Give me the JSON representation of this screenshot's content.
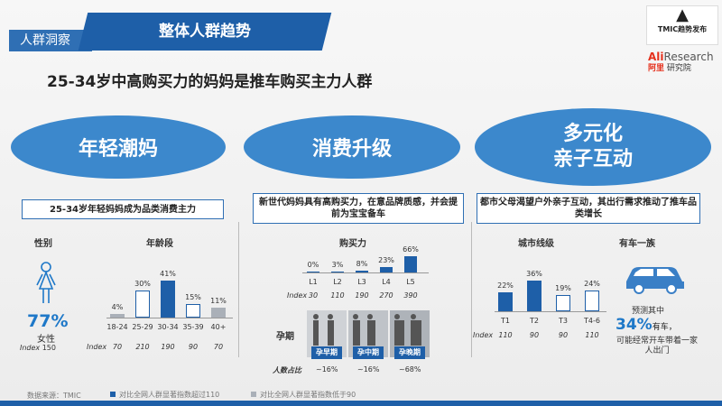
{
  "header": {
    "section": "人群洞察",
    "title": "整体人群趋势"
  },
  "logos": {
    "tmic_text": "TMIC趋势发布",
    "ali_brand": "Ali",
    "ali_research": "Research",
    "ali_cn": "阿里",
    "ali_cn2": "研究院"
  },
  "headline": "25-34岁中高购买力的妈妈是推车购买主力人群",
  "themes": [
    "年轻潮妈",
    "消费升级",
    "多元化",
    "亲子互动"
  ],
  "insights": [
    "25-34岁年轻妈妈成为品类消费主力",
    "新世代妈妈具有高购买力，在意品牌质感，并会提前为宝宝备车",
    "都市父母渴望户外亲子互动，其出行需求推动了推车品类增长"
  ],
  "labels": {
    "gender": "性别",
    "age": "年龄段",
    "purchase": "购买力",
    "pregnancy": "孕期",
    "city": "城市线级",
    "car": "有车一族",
    "index": "Index",
    "pop_share": "人数占比"
  },
  "gender": {
    "pct": "77%",
    "text": "女性",
    "index_label": "Index",
    "index": "150"
  },
  "age": {
    "categories": [
      "18-24",
      "25-29",
      "30-34",
      "35-39",
      "40+"
    ],
    "values": [
      4,
      30,
      41,
      15,
      11
    ],
    "labels": [
      "4%",
      "30%",
      "41%",
      "15%",
      "11%"
    ],
    "index": [
      "70",
      "210",
      "190",
      "90",
      "70"
    ],
    "style": [
      "gray",
      "outline",
      "fill",
      "outline",
      "gray"
    ]
  },
  "purchase": {
    "categories": [
      "L1",
      "L2",
      "L3",
      "L4",
      "L5"
    ],
    "values": [
      0,
      3,
      8,
      23,
      66
    ],
    "labels": [
      "0%",
      "3%",
      "8%",
      "23%",
      "66%"
    ],
    "index": [
      "30",
      "110",
      "190",
      "270",
      "390"
    ]
  },
  "pregnancy": {
    "stages": [
      "孕早期",
      "孕中期",
      "孕晚期"
    ],
    "shares": [
      "~16%",
      "~16%",
      "~68%"
    ]
  },
  "city": {
    "categories": [
      "T1",
      "T2",
      "T3",
      "T4-6"
    ],
    "values": [
      22,
      36,
      19,
      24
    ],
    "labels": [
      "22%",
      "36%",
      "19%",
      "24%"
    ],
    "index": [
      "110",
      "90",
      "90",
      "110"
    ],
    "style": [
      "fill",
      "fill",
      "outline",
      "outline"
    ]
  },
  "car": {
    "pre": "预测其中",
    "pct": "34%",
    "suffix": "有车，",
    "text": "可能经常开车带着一家人出门"
  },
  "footer": {
    "source": "数据来源：TMIC",
    "legend_high": "对比全网人群显著指数超过110",
    "legend_low": "对比全网人群显著指数低于90"
  },
  "colors": {
    "primary": "#1e5fa8",
    "ellipse": "#3c88cc",
    "gray": "#aab0b8",
    "accent": "#e5301c"
  }
}
